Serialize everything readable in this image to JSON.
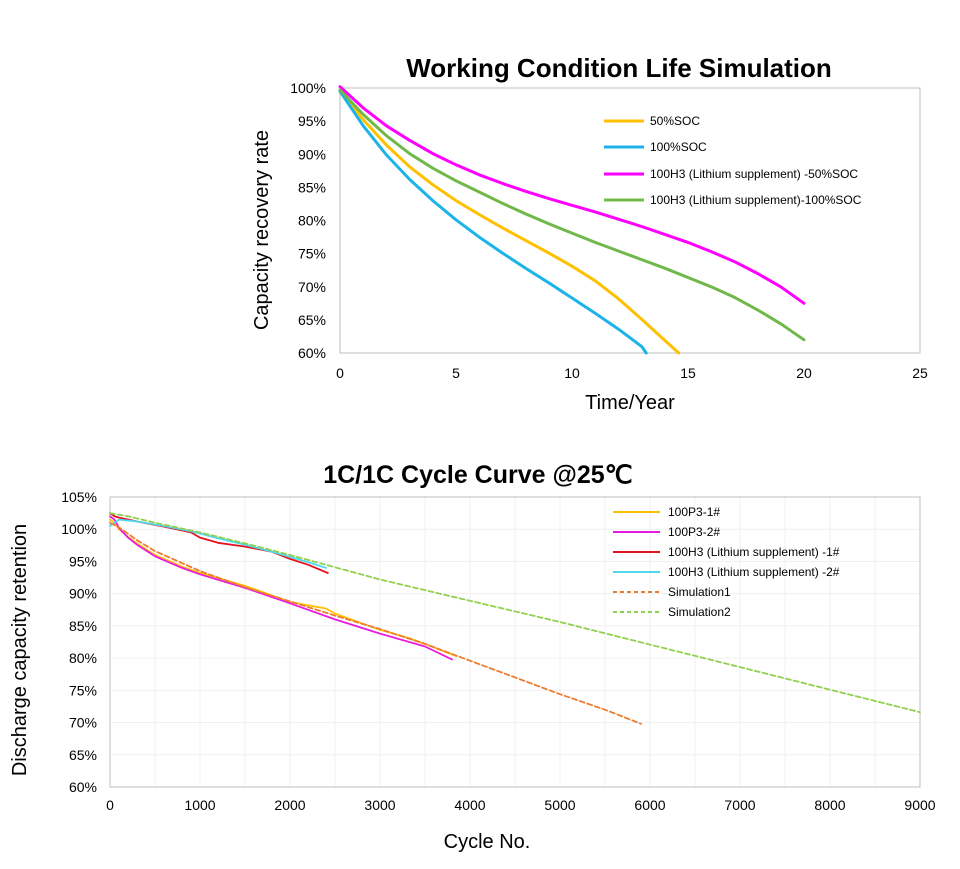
{
  "chart_data": [
    {
      "type": "line",
      "title": "Working Condition Life Simulation",
      "xlabel": "Time/Year",
      "ylabel": "Capacity recovery rate",
      "xlim": [
        0,
        25
      ],
      "ylim": [
        60,
        100
      ],
      "xticks": [
        "0",
        "5",
        "10",
        "15",
        "20",
        "25"
      ],
      "yticks": [
        "60%",
        "65%",
        "70%",
        "75%",
        "80%",
        "85%",
        "90%",
        "95%",
        "100%"
      ],
      "grid": false,
      "legend": "top-right",
      "series": [
        {
          "name": "50%SOC",
          "color": "#FFC000",
          "x": [
            0,
            1,
            2,
            3,
            4,
            5,
            6,
            7,
            8,
            9,
            10,
            11,
            12,
            13,
            14,
            14.6
          ],
          "y": [
            99.5,
            95.2,
            91.4,
            88.1,
            85.4,
            83.0,
            80.9,
            78.9,
            77.0,
            75.1,
            73.1,
            70.9,
            68.2,
            65.1,
            61.9,
            60.0
          ]
        },
        {
          "name": "100%SOC",
          "color": "#1CB4E8",
          "x": [
            0,
            1,
            2,
            3,
            4,
            5,
            6,
            7,
            8,
            9,
            10,
            11,
            12,
            13,
            13.2
          ],
          "y": [
            99.5,
            94.3,
            89.9,
            86.2,
            83.0,
            80.1,
            77.5,
            75.1,
            72.8,
            70.6,
            68.3,
            66.0,
            63.6,
            61.0,
            60.0
          ]
        },
        {
          "name": "100H3 (Lithium supplement) -50%SOC",
          "color": "#FF00FF",
          "x": [
            0,
            1,
            2,
            3,
            4,
            5,
            6,
            7,
            8,
            9,
            10,
            11,
            12,
            13,
            14,
            15,
            16,
            17,
            18,
            19,
            20
          ],
          "y": [
            100.2,
            97.0,
            94.3,
            92.1,
            90.1,
            88.4,
            86.9,
            85.6,
            84.4,
            83.3,
            82.3,
            81.3,
            80.2,
            79.1,
            77.9,
            76.7,
            75.3,
            73.8,
            72.0,
            70.0,
            67.5
          ]
        },
        {
          "name": "100H3 (Lithium supplement)-100%SOC",
          "color": "#70B84A",
          "x": [
            0,
            1,
            2,
            3,
            4,
            5,
            6,
            7,
            8,
            9,
            10,
            11,
            12,
            13,
            14,
            15,
            16,
            17,
            18,
            19,
            20
          ],
          "y": [
            99.7,
            96.0,
            92.8,
            90.1,
            87.9,
            86.0,
            84.3,
            82.6,
            81.0,
            79.5,
            78.1,
            76.7,
            75.4,
            74.1,
            72.8,
            71.4,
            70.0,
            68.4,
            66.5,
            64.4,
            62.0
          ]
        }
      ]
    },
    {
      "type": "line",
      "title": "1C/1C Cycle Curve @25℃",
      "xlabel": "Cycle No.",
      "ylabel": "Discharge capacity retention",
      "xlim": [
        0,
        9000
      ],
      "ylim": [
        60,
        105
      ],
      "xticks": [
        "0",
        "1000",
        "2000",
        "3000",
        "4000",
        "5000",
        "6000",
        "7000",
        "8000",
        "9000"
      ],
      "yticks": [
        "60%",
        "65%",
        "70%",
        "75%",
        "80%",
        "85%",
        "90%",
        "95%",
        "100%",
        "105%"
      ],
      "grid": true,
      "legend": "top-right",
      "series": [
        {
          "name": "100P3-1#",
          "color": "#FFC000",
          "dash": false,
          "x": [
            0,
            50,
            100,
            200,
            300,
            500,
            800,
            1000,
            1500,
            2000,
            2400,
            2500,
            3000,
            3300,
            3500,
            3850
          ],
          "y": [
            101.5,
            101.0,
            100.0,
            98.8,
            97.8,
            96.0,
            94.2,
            93.2,
            91.2,
            88.7,
            87.7,
            86.9,
            84.4,
            83.2,
            82.2,
            80.3
          ]
        },
        {
          "name": "100P3-2#",
          "color": "#E81CE0",
          "dash": false,
          "x": [
            0,
            50,
            100,
            200,
            300,
            500,
            800,
            1000,
            1500,
            2000,
            2500,
            3000,
            3500,
            3800
          ],
          "y": [
            102.0,
            101.5,
            100.2,
            98.7,
            97.6,
            95.8,
            94.0,
            93.0,
            90.9,
            88.5,
            86.0,
            83.8,
            81.8,
            79.8
          ]
        },
        {
          "name": "100H3 (Lithium supplement) -1#",
          "color": "#E3141C",
          "dash": false,
          "x": [
            0,
            50,
            100,
            300,
            600,
            900,
            1000,
            1200,
            1500,
            1800,
            2000,
            2200,
            2420
          ],
          "y": [
            102.5,
            102.0,
            101.8,
            101.2,
            100.4,
            99.5,
            98.7,
            97.9,
            97.3,
            96.5,
            95.4,
            94.5,
            93.2
          ]
        },
        {
          "name": "100H3 (Lithium supplement) -2#",
          "color": "#4DD8F0",
          "dash": false,
          "x": [
            0,
            50,
            100,
            300,
            600,
            900,
            1200,
            1500,
            1800,
            2000,
            2200,
            2400
          ],
          "y": [
            100.5,
            101.0,
            101.5,
            101.2,
            100.5,
            99.7,
            98.6,
            97.6,
            96.5,
            95.7,
            94.9,
            94.0
          ]
        },
        {
          "name": "Simulation1",
          "color": "#ED7D31",
          "dash": true,
          "x": [
            0,
            100,
            300,
            500,
            1000,
            1500,
            2000,
            2500,
            3000,
            3500,
            4000,
            4500,
            5000,
            5500,
            5900
          ],
          "y": [
            101.0,
            100.3,
            98.3,
            96.6,
            93.5,
            91.0,
            88.8,
            86.6,
            84.5,
            82.2,
            79.6,
            77.0,
            74.4,
            72.0,
            69.8
          ]
        },
        {
          "name": "Simulation2",
          "color": "#92D050",
          "dash": true,
          "x": [
            0,
            200,
            500,
            1000,
            1500,
            2000,
            3000,
            4000,
            5000,
            6000,
            7000,
            8000,
            9000
          ],
          "y": [
            102.5,
            102.0,
            101.0,
            99.5,
            97.8,
            96.0,
            92.2,
            88.9,
            85.6,
            82.1,
            78.6,
            75.1,
            71.6
          ]
        }
      ]
    }
  ]
}
